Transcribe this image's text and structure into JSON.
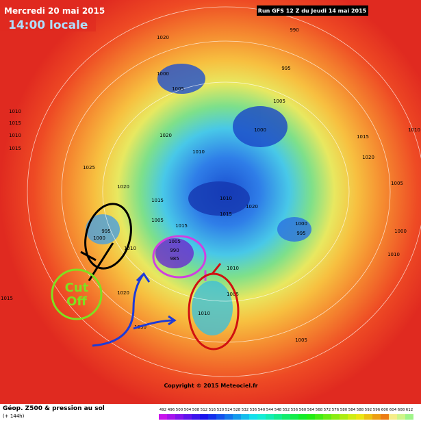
{
  "header": {
    "date": "Mercredi 20 mai 2015",
    "time": "14:00 locale",
    "run": "Run GFS 12 Z du Jeudi 14 mai 2015"
  },
  "copyright": "Copyright © 2015 Meteociel.fr",
  "footer": {
    "title": "Géop. Z500 & pression au sol",
    "lead": "(+ 144h)"
  },
  "annotation": "Cut Off",
  "isobar_labels": [
    1020,
    990,
    1000,
    1005,
    995,
    1005,
    1000,
    1020,
    1010,
    1015,
    1010,
    1015,
    1010,
    1025,
    1020,
    1015,
    1005,
    995,
    1000,
    1010,
    1015,
    1010,
    1015,
    1020,
    1000,
    995,
    1005,
    990,
    985,
    1010,
    1005,
    1010,
    1015,
    1020,
    1030,
    1005,
    1010,
    1005,
    1000,
    1020,
    1015,
    1010
  ],
  "colorbar": {
    "ticks": [
      492,
      496,
      500,
      504,
      508,
      512,
      516,
      520,
      524,
      528,
      532,
      536,
      540,
      544,
      548,
      552,
      556,
      560,
      564,
      568,
      572,
      576,
      580,
      584,
      588,
      592,
      596,
      600,
      604,
      608,
      612
    ]
  }
}
